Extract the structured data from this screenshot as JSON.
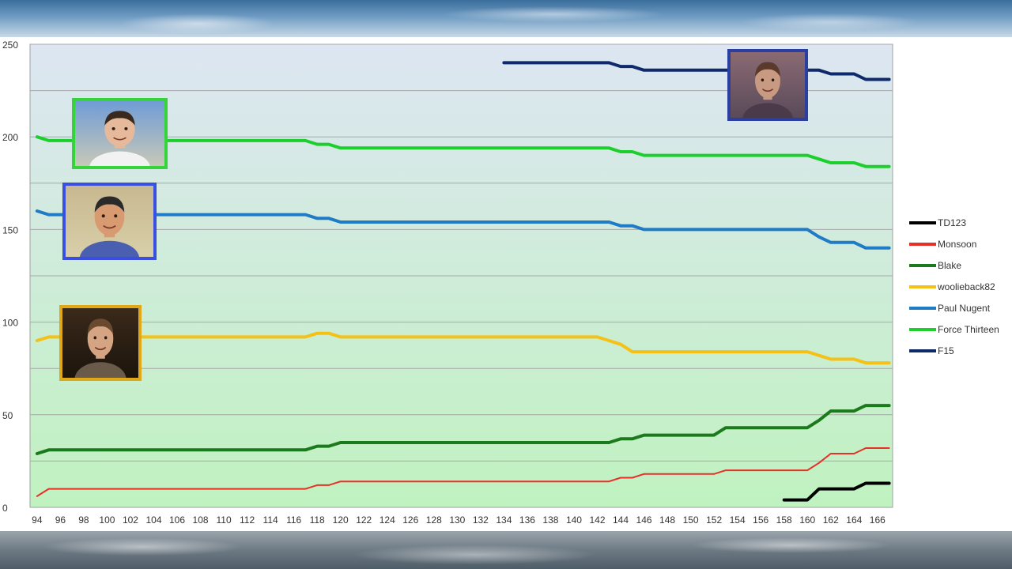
{
  "chart_data": {
    "type": "line",
    "title": "",
    "xlabel": "",
    "ylabel": "",
    "xlim": [
      94,
      167
    ],
    "ylim": [
      0,
      250
    ],
    "y_ticks": [
      0,
      50,
      100,
      150,
      200,
      250
    ],
    "x_ticks": [
      94,
      96,
      98,
      100,
      102,
      104,
      106,
      108,
      110,
      112,
      114,
      116,
      118,
      120,
      122,
      124,
      126,
      128,
      130,
      132,
      134,
      136,
      138,
      140,
      142,
      144,
      146,
      148,
      150,
      152,
      154,
      156,
      158,
      160,
      162,
      164,
      166
    ],
    "grid": "horizontal",
    "legend_position": "right",
    "background_gradient": [
      "#dde6f2",
      "#c0f2c0"
    ],
    "series": [
      {
        "name": "TD123",
        "color": "#000000",
        "points": [
          [
            158,
            4
          ],
          [
            160,
            4
          ],
          [
            161,
            10
          ],
          [
            164,
            10
          ],
          [
            165,
            13
          ],
          [
            167,
            13
          ]
        ]
      },
      {
        "name": "Monsoon",
        "color": "#e8302a",
        "points": [
          [
            94,
            6
          ],
          [
            95,
            10
          ],
          [
            117,
            10
          ],
          [
            118,
            12
          ],
          [
            119,
            12
          ],
          [
            120,
            14
          ],
          [
            143,
            14
          ],
          [
            144,
            16
          ],
          [
            145,
            16
          ],
          [
            146,
            18
          ],
          [
            152,
            18
          ],
          [
            153,
            20
          ],
          [
            160,
            20
          ],
          [
            161,
            24
          ],
          [
            162,
            29
          ],
          [
            164,
            29
          ],
          [
            165,
            32
          ],
          [
            167,
            32
          ]
        ]
      },
      {
        "name": "Blake",
        "color": "#1b7a1b",
        "points": [
          [
            94,
            29
          ],
          [
            95,
            31
          ],
          [
            117,
            31
          ],
          [
            118,
            33
          ],
          [
            119,
            33
          ],
          [
            120,
            35
          ],
          [
            143,
            35
          ],
          [
            144,
            37
          ],
          [
            145,
            37
          ],
          [
            146,
            39
          ],
          [
            152,
            39
          ],
          [
            153,
            43
          ],
          [
            160,
            43
          ],
          [
            161,
            47
          ],
          [
            162,
            52
          ],
          [
            164,
            52
          ],
          [
            165,
            55
          ],
          [
            167,
            55
          ]
        ]
      },
      {
        "name": "woolieback82",
        "color": "#f5c116",
        "points": [
          [
            94,
            90
          ],
          [
            95,
            92
          ],
          [
            117,
            92
          ],
          [
            118,
            94
          ],
          [
            119,
            94
          ],
          [
            120,
            92
          ],
          [
            142,
            92
          ],
          [
            143,
            90
          ],
          [
            144,
            88
          ],
          [
            145,
            84
          ],
          [
            160,
            84
          ],
          [
            161,
            82
          ],
          [
            162,
            80
          ],
          [
            164,
            80
          ],
          [
            165,
            78
          ],
          [
            167,
            78
          ]
        ]
      },
      {
        "name": "Paul Nugent",
        "color": "#1f7bc6",
        "points": [
          [
            94,
            160
          ],
          [
            95,
            158
          ],
          [
            117,
            158
          ],
          [
            118,
            156
          ],
          [
            119,
            156
          ],
          [
            120,
            154
          ],
          [
            143,
            154
          ],
          [
            144,
            152
          ],
          [
            145,
            152
          ],
          [
            146,
            150
          ],
          [
            160,
            150
          ],
          [
            161,
            146
          ],
          [
            162,
            143
          ],
          [
            164,
            143
          ],
          [
            165,
            140
          ],
          [
            167,
            140
          ]
        ]
      },
      {
        "name": "Force Thirteen",
        "color": "#1ccf2c",
        "points": [
          [
            94,
            200
          ],
          [
            95,
            198
          ],
          [
            117,
            198
          ],
          [
            118,
            196
          ],
          [
            119,
            196
          ],
          [
            120,
            194
          ],
          [
            143,
            194
          ],
          [
            144,
            192
          ],
          [
            145,
            192
          ],
          [
            146,
            190
          ],
          [
            160,
            190
          ],
          [
            161,
            188
          ],
          [
            162,
            186
          ],
          [
            164,
            186
          ],
          [
            165,
            184
          ],
          [
            167,
            184
          ]
        ]
      },
      {
        "name": "F15",
        "color": "#0e2a6b",
        "points": [
          [
            134,
            240
          ],
          [
            143,
            240
          ],
          [
            144,
            238
          ],
          [
            145,
            238
          ],
          [
            146,
            236
          ],
          [
            160,
            236
          ],
          [
            161,
            236
          ],
          [
            162,
            234
          ],
          [
            164,
            234
          ],
          [
            165,
            231
          ],
          [
            167,
            231
          ]
        ]
      }
    ]
  },
  "photos": [
    {
      "name": "photo-force-thirteen",
      "border_color": "#35d43a",
      "skin": "#e5b99a",
      "hair": "#3a2a1e",
      "bg_top": "#6f9cd6",
      "bg_bottom": "#c8c8b8",
      "shirt": "#f2f2f2"
    },
    {
      "name": "photo-paul-nugent",
      "border_color": "#3a4fe0",
      "skin": "#d89a70",
      "hair": "#2a2a2a",
      "bg_top": "#c8b890",
      "bg_bottom": "#d8cfa8",
      "shirt": "#4a5fb0"
    },
    {
      "name": "photo-woolieback82",
      "border_color": "#e0a818",
      "skin": "#d5a482",
      "hair": "#6a4a2e",
      "bg_top": "#3a2a1a",
      "bg_bottom": "#1c140c",
      "shirt": "#6a5a4a"
    },
    {
      "name": "photo-f15",
      "border_color": "#2a3fa0",
      "skin": "#c89a82",
      "hair": "#5a3a2a",
      "bg_top": "#8a6a72",
      "bg_bottom": "#5a4a5a",
      "shirt": "#4a3a4a"
    }
  ]
}
